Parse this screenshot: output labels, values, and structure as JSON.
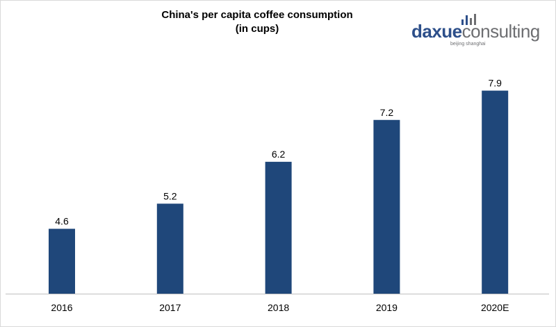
{
  "chart_data": {
    "type": "bar",
    "title": "China's per capita coffee consumption",
    "subtitle": "(in cups)",
    "categories": [
      "2016",
      "2017",
      "2018",
      "2019",
      "2020E"
    ],
    "values": [
      4.6,
      5.2,
      6.2,
      7.2,
      7.9
    ],
    "data_labels": [
      "4.6",
      "5.2",
      "6.2",
      "7.2",
      "7.9"
    ],
    "xlabel": "",
    "ylabel": "",
    "ylim": [
      3,
      8.5
    ],
    "y_axis_visible": false,
    "grid": false,
    "legend": "none",
    "bar_color": "#1f477a"
  },
  "logo": {
    "brand_part1": "daxue",
    "brand_part2": "consulting",
    "tagline": "beijing shanghai",
    "color_primary": "#2d4f8a",
    "color_secondary": "#6d6e71"
  }
}
